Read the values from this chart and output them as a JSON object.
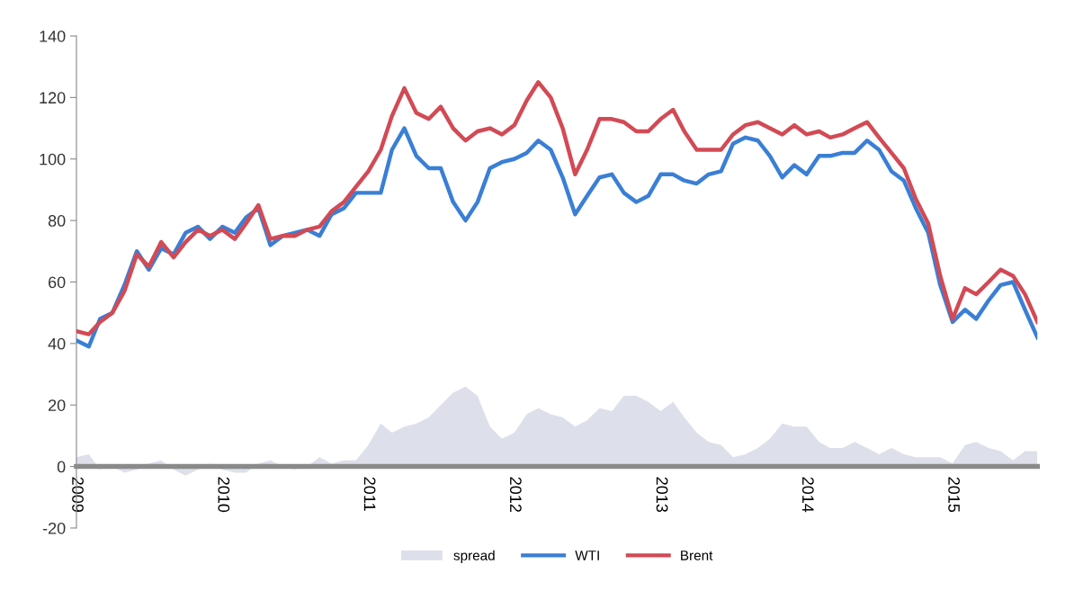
{
  "chart_data": {
    "type": "line",
    "x": [
      "2009-01",
      "2009-02",
      "2009-03",
      "2009-04",
      "2009-05",
      "2009-06",
      "2009-07",
      "2009-08",
      "2009-09",
      "2009-10",
      "2009-11",
      "2009-12",
      "2010-01",
      "2010-02",
      "2010-03",
      "2010-04",
      "2010-05",
      "2010-06",
      "2010-07",
      "2010-08",
      "2010-09",
      "2010-10",
      "2010-11",
      "2010-12",
      "2011-01",
      "2011-02",
      "2011-03",
      "2011-04",
      "2011-05",
      "2011-06",
      "2011-07",
      "2011-08",
      "2011-09",
      "2011-10",
      "2011-11",
      "2011-12",
      "2012-01",
      "2012-02",
      "2012-03",
      "2012-04",
      "2012-05",
      "2012-06",
      "2012-07",
      "2012-08",
      "2012-09",
      "2012-10",
      "2012-11",
      "2012-12",
      "2013-01",
      "2013-02",
      "2013-03",
      "2013-04",
      "2013-05",
      "2013-06",
      "2013-07",
      "2013-08",
      "2013-09",
      "2013-10",
      "2013-11",
      "2013-12",
      "2014-01",
      "2014-02",
      "2014-03",
      "2014-04",
      "2014-05",
      "2014-06",
      "2014-07",
      "2014-08",
      "2014-09",
      "2014-10",
      "2014-11",
      "2014-12",
      "2015-01",
      "2015-02",
      "2015-03",
      "2015-04",
      "2015-05",
      "2015-06",
      "2015-07",
      "2015-08"
    ],
    "series": [
      {
        "name": "spread",
        "type": "area",
        "color": "#dde0ea",
        "values": [
          3,
          4,
          -1,
          0,
          -2,
          -1,
          1,
          2,
          -1,
          -3,
          -1,
          1,
          -1,
          -2,
          -2,
          1,
          2,
          0,
          -1,
          0,
          3,
          1,
          2,
          2,
          7,
          14,
          11,
          13,
          14,
          16,
          20,
          24,
          26,
          23,
          13,
          9,
          11,
          17,
          19,
          17,
          16,
          13,
          15,
          19,
          18,
          23,
          23,
          21,
          18,
          21,
          16,
          11,
          8,
          7,
          3,
          4,
          6,
          9,
          14,
          13,
          13,
          8,
          6,
          6,
          8,
          6,
          4,
          6,
          4,
          3,
          3,
          3,
          1,
          7,
          8,
          6,
          5,
          2,
          5,
          5
        ]
      },
      {
        "name": "WTI",
        "color": "#3a7fd5",
        "values": [
          41,
          39,
          48,
          50,
          59,
          70,
          64,
          71,
          69,
          76,
          78,
          74,
          78,
          76,
          81,
          84,
          72,
          75,
          76,
          77,
          75,
          82,
          84,
          89,
          89,
          89,
          103,
          110,
          101,
          97,
          97,
          86,
          80,
          86,
          97,
          99,
          100,
          102,
          106,
          103,
          94,
          82,
          88,
          94,
          95,
          89,
          86,
          88,
          95,
          95,
          93,
          92,
          95,
          96,
          105,
          107,
          106,
          101,
          94,
          98,
          95,
          101,
          101,
          102,
          102,
          106,
          103,
          96,
          93,
          84,
          76,
          59,
          47,
          51,
          48,
          54,
          59,
          60,
          51,
          42
        ]
      },
      {
        "name": "Brent",
        "color": "#d24a55",
        "values": [
          44,
          43,
          47,
          50,
          57,
          69,
          65,
          73,
          68,
          73,
          77,
          75,
          77,
          74,
          79,
          85,
          74,
          75,
          75,
          77,
          78,
          83,
          86,
          91,
          96,
          103,
          114,
          123,
          115,
          113,
          117,
          110,
          106,
          109,
          110,
          108,
          111,
          119,
          125,
          120,
          110,
          95,
          103,
          113,
          113,
          112,
          109,
          109,
          113,
          116,
          109,
          103,
          103,
          103,
          108,
          111,
          112,
          110,
          108,
          111,
          108,
          109,
          107,
          108,
          110,
          112,
          107,
          102,
          97,
          87,
          79,
          62,
          48,
          58,
          56,
          60,
          64,
          62,
          56,
          47
        ]
      }
    ],
    "xlim": [
      "2009-01",
      "2015-08"
    ],
    "xticks": [
      {
        "value": "2009-01",
        "label": "2009"
      },
      {
        "value": "2010-01",
        "label": "2010"
      },
      {
        "value": "2011-01",
        "label": "2011"
      },
      {
        "value": "2012-01",
        "label": "2012"
      },
      {
        "value": "2013-01",
        "label": "2013"
      },
      {
        "value": "2014-01",
        "label": "2014"
      },
      {
        "value": "2015-01",
        "label": "2015"
      }
    ],
    "ylim": [
      -20,
      140
    ],
    "yticks": [
      -20,
      0,
      20,
      40,
      60,
      80,
      100,
      120,
      140
    ],
    "grid": false,
    "legend": "bottom"
  }
}
